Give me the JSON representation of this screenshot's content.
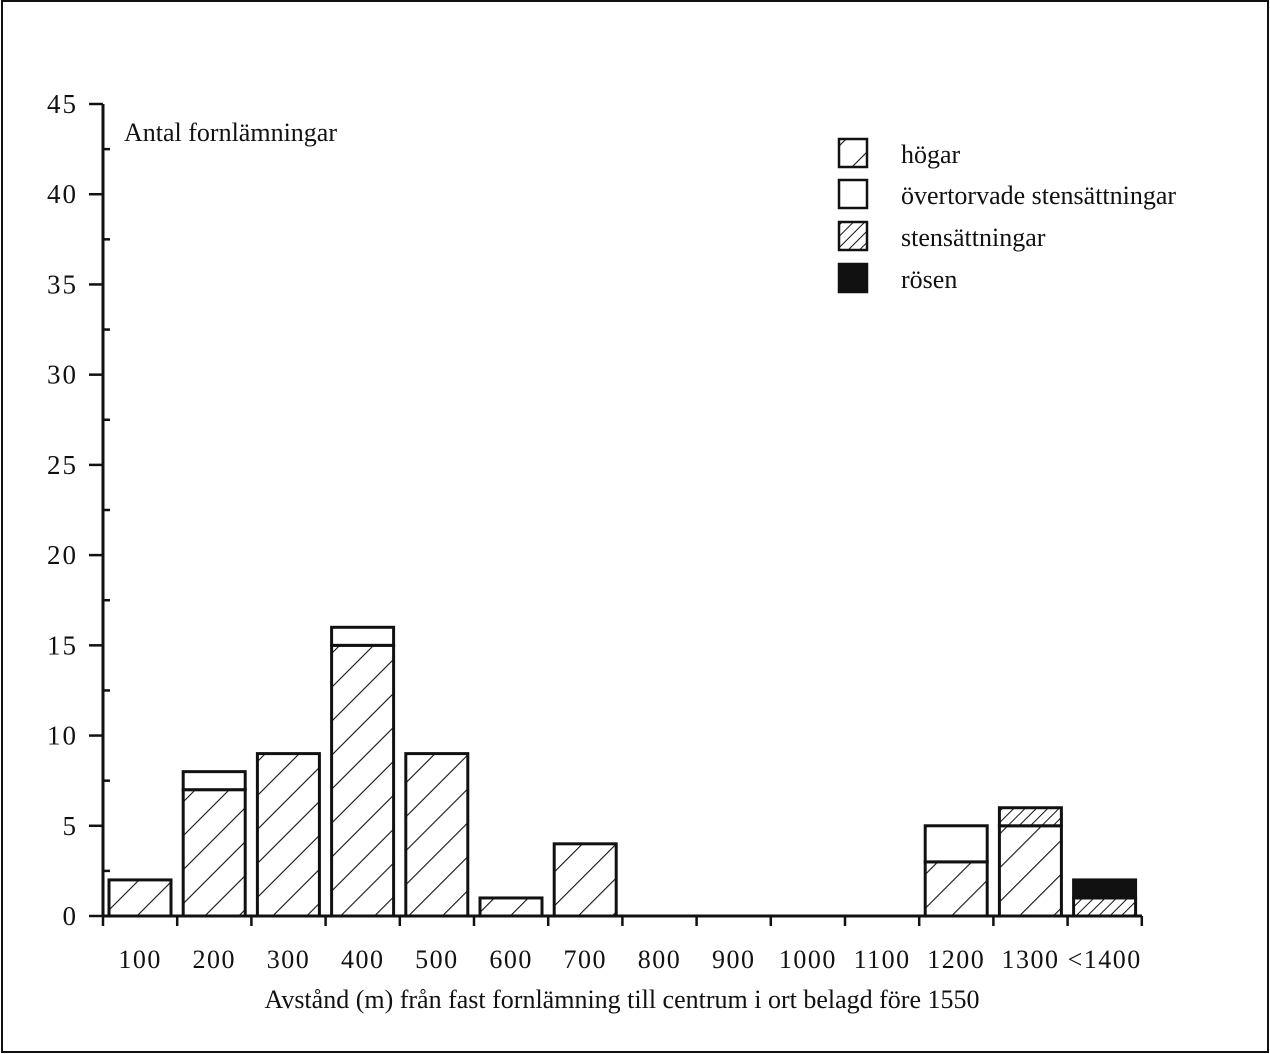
{
  "chart_data": {
    "type": "bar",
    "stacked": true,
    "title": "",
    "ylabel": "Antal fornlämningar",
    "xlabel": "Avstånd (m) från fast fornlämning till centrum i ort belagd före 1550",
    "categories": [
      "100",
      "200",
      "300",
      "400",
      "500",
      "600",
      "700",
      "800",
      "900",
      "1000",
      "1100",
      "1200",
      "1300",
      "<1400"
    ],
    "ylim": [
      0,
      45
    ],
    "yticks": [
      "0",
      "5",
      "10",
      "15",
      "20",
      "25",
      "30",
      "35",
      "40",
      "45"
    ],
    "legend_position": "top-right",
    "grid": false,
    "series": [
      {
        "name": "rösen",
        "pattern": "solid-black",
        "values": [
          0,
          0,
          0,
          0,
          0,
          0,
          0,
          0,
          0,
          0,
          0,
          0,
          0,
          1
        ]
      },
      {
        "name": "stensättningar",
        "pattern": "hatch-dense",
        "values": [
          0,
          0,
          0,
          0,
          0,
          0,
          0,
          0,
          0,
          0,
          0,
          0,
          1,
          1
        ]
      },
      {
        "name": "övertorvade stensättningar",
        "pattern": "white",
        "values": [
          0,
          1,
          0,
          1,
          0,
          0,
          0,
          0,
          0,
          0,
          0,
          2,
          0,
          0
        ]
      },
      {
        "name": "högar",
        "pattern": "hatch-wide",
        "values": [
          2,
          7,
          9,
          15,
          9,
          1,
          4,
          0,
          0,
          0,
          0,
          3,
          5,
          0
        ]
      }
    ],
    "stack_order_bottom_to_top": [
      "högar",
      "övertorvade stensättningar",
      "stensättningar",
      "rösen"
    ],
    "legend_order": [
      "högar",
      "övertorvade stensättningar",
      "stensättningar",
      "rösen"
    ]
  }
}
